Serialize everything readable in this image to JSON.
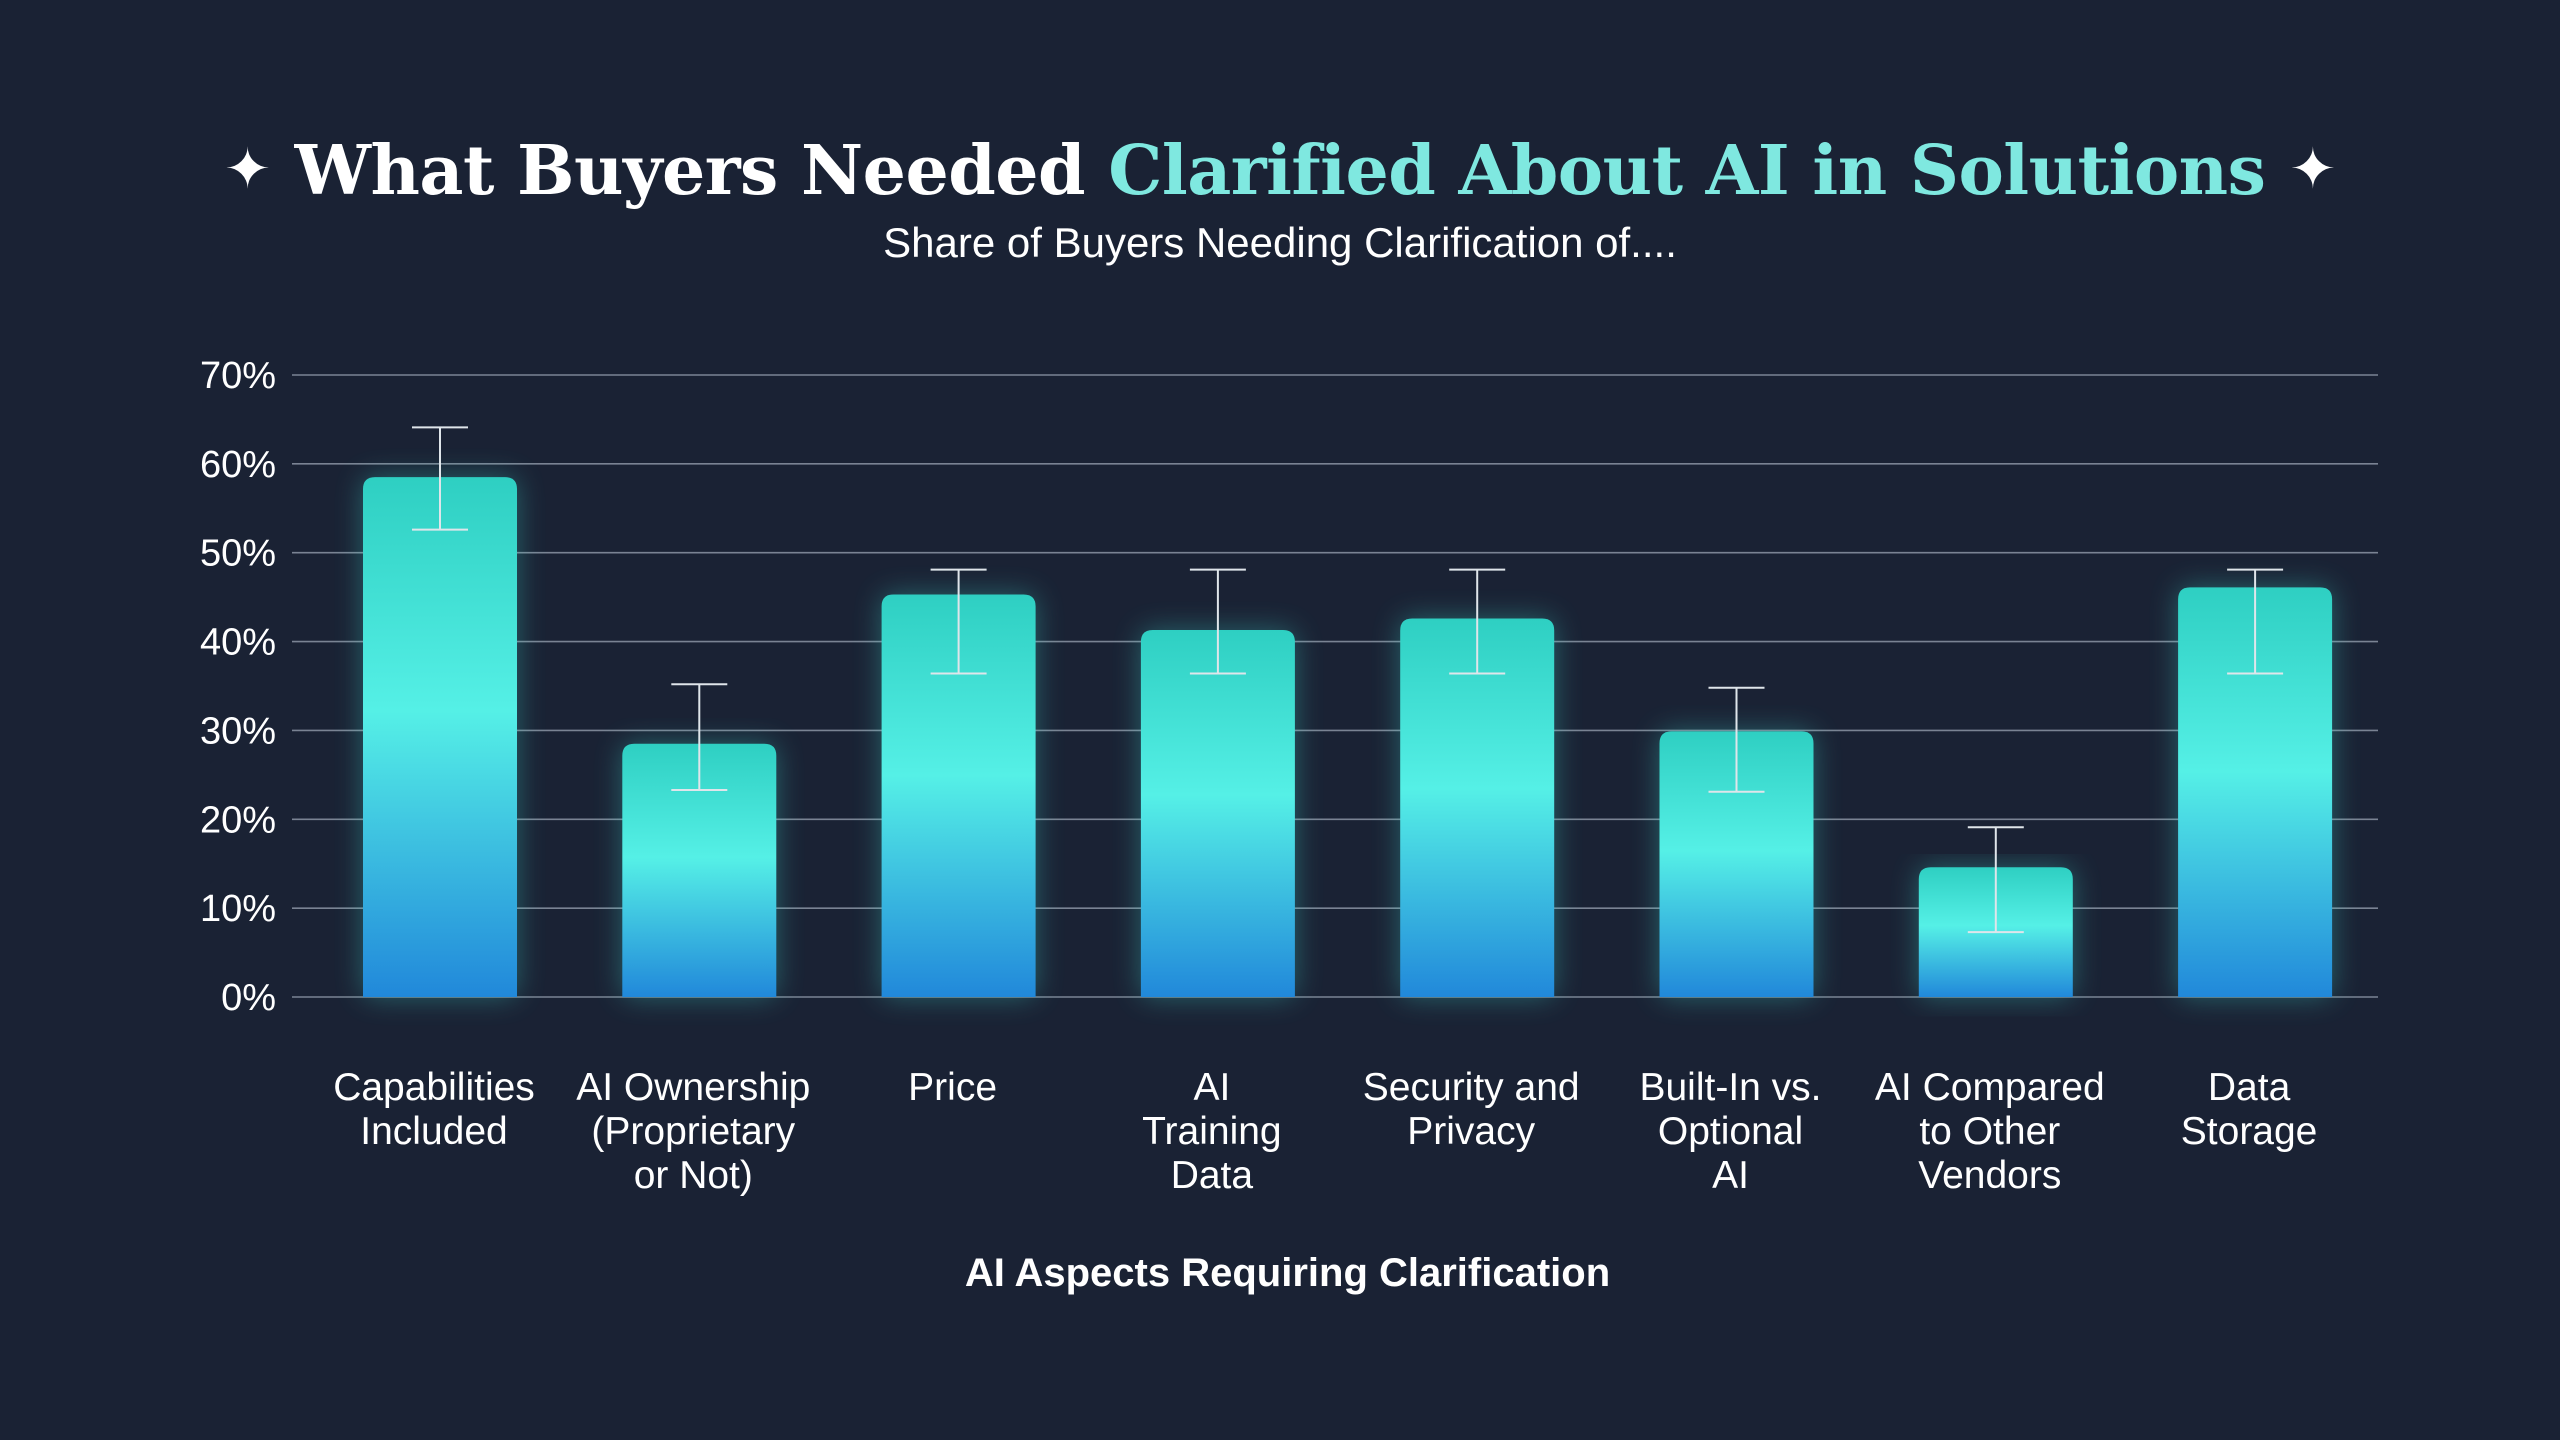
{
  "title": {
    "part_white": "What Buyers Needed ",
    "part_cyan": "Clarified About AI in Solutions",
    "left_spark": "✦",
    "right_spark": "✦"
  },
  "subtitle": "Share of Buyers Needing Clarification of....",
  "colors": {
    "background": "#1a2234",
    "bar_top": "#2ecfc2",
    "bar_mid": "#55f0e6",
    "bar_bottom": "#2188da",
    "grid": "#7a8393",
    "error_bar": "#dfe5ea"
  },
  "chart_data": {
    "type": "bar",
    "title": "What Buyers Needed Clarified About AI in Solutions",
    "subtitle": "Share of Buyers Needing Clarification of....",
    "xlabel": "AI Aspects Requiring Clarification",
    "ylabel": "",
    "ylim": [
      0,
      70
    ],
    "yticks": [
      0,
      10,
      20,
      30,
      40,
      50,
      60,
      70
    ],
    "ytick_labels": [
      "0%",
      "10%",
      "20%",
      "30%",
      "40%",
      "50%",
      "60%",
      "70%"
    ],
    "grid": true,
    "legend": "none",
    "categories": [
      [
        "Capabilities",
        "Included"
      ],
      [
        "AI Ownership",
        "(Proprietary",
        "or Not)"
      ],
      [
        "Price"
      ],
      [
        "AI",
        "Training",
        "Data"
      ],
      [
        "Security and",
        "Privacy"
      ],
      [
        "Built-In vs.",
        "Optional",
        "AI"
      ],
      [
        "AI Compared",
        "to Other",
        "Vendors"
      ],
      [
        "Data",
        "Storage"
      ]
    ],
    "values": [
      58.5,
      28.5,
      45.3,
      41.3,
      42.6,
      29.9,
      14.6,
      46.1
    ],
    "error_low": [
      52.6,
      23.3,
      36.4,
      36.4,
      36.4,
      23.1,
      7.3,
      36.4
    ],
    "error_high": [
      64.1,
      35.2,
      48.1,
      48.1,
      48.1,
      34.8,
      19.1,
      48.1
    ]
  }
}
